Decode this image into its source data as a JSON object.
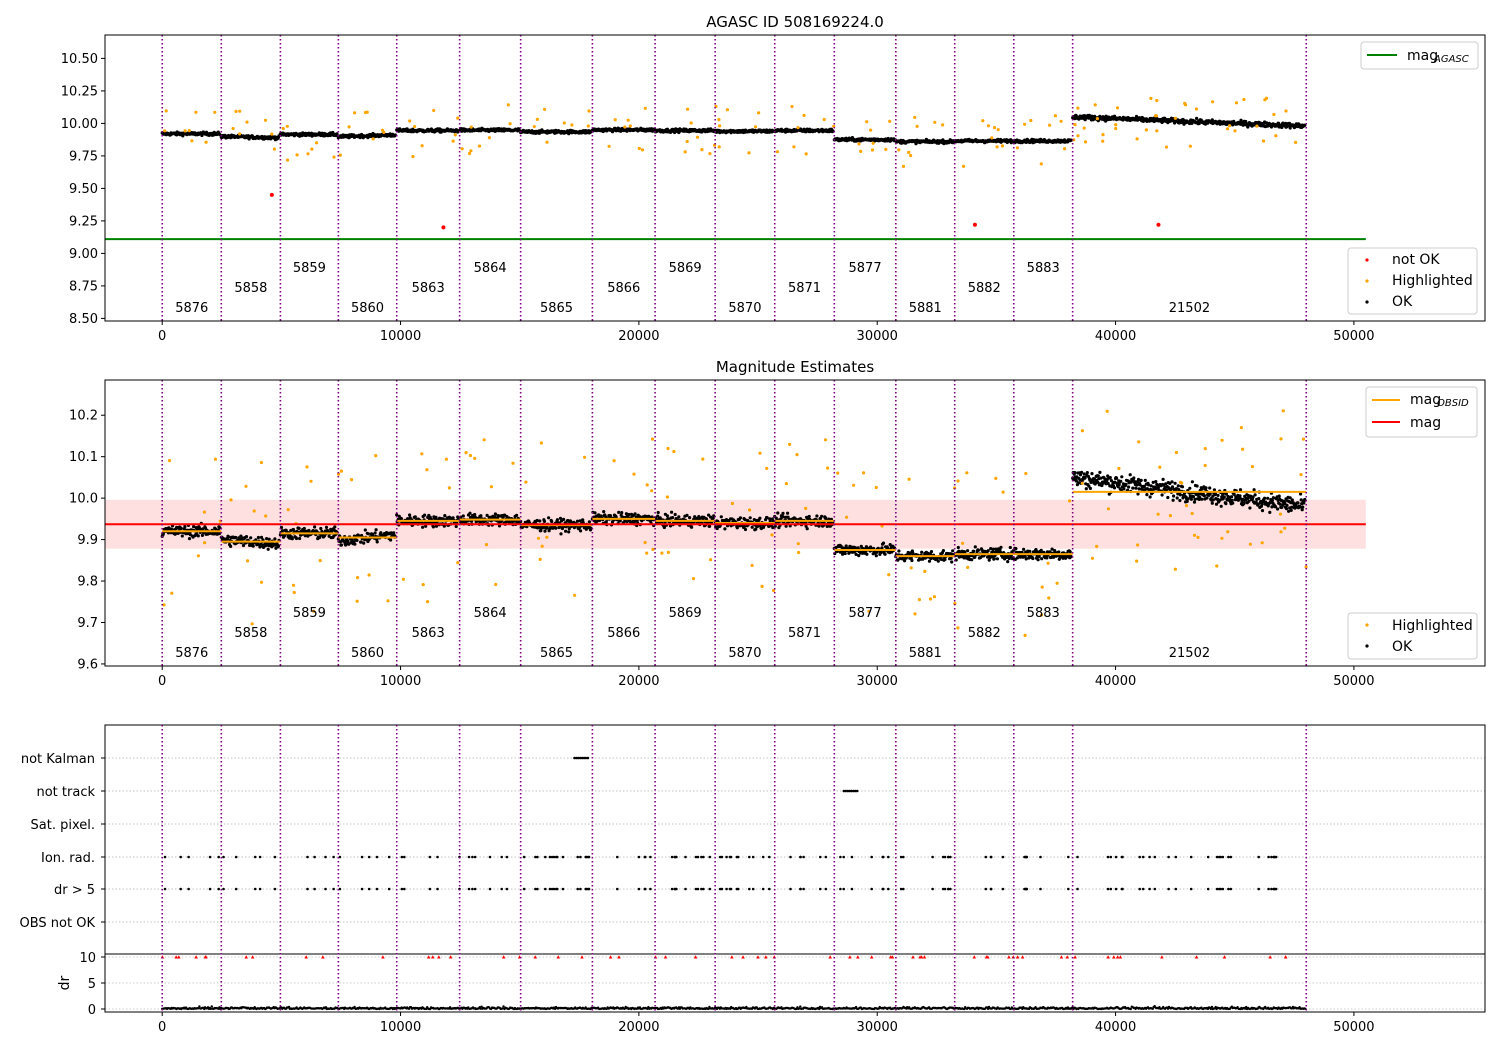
{
  "chart_data": {
    "type": "scatter",
    "obsids": [
      {
        "label": "5876",
        "start": 0,
        "end": 2480,
        "mag": 9.92,
        "row": 0
      },
      {
        "label": "5858",
        "start": 2480,
        "end": 4960,
        "mag": 9.895,
        "row": 1
      },
      {
        "label": "5859",
        "start": 4960,
        "end": 7390,
        "mag": 9.915,
        "row": 2
      },
      {
        "label": "5860",
        "start": 7390,
        "end": 9840,
        "mag": 9.905,
        "row": 0
      },
      {
        "label": "5863",
        "start": 9840,
        "end": 12480,
        "mag": 9.945,
        "row": 1
      },
      {
        "label": "5864",
        "start": 12480,
        "end": 15040,
        "mag": 9.948,
        "row": 2
      },
      {
        "label": "5865",
        "start": 15040,
        "end": 18050,
        "mag": 9.935,
        "row": 0
      },
      {
        "label": "5866",
        "start": 18050,
        "end": 20680,
        "mag": 9.95,
        "row": 1
      },
      {
        "label": "5869",
        "start": 20680,
        "end": 23200,
        "mag": 9.945,
        "row": 2
      },
      {
        "label": "5870",
        "start": 23200,
        "end": 25700,
        "mag": 9.94,
        "row": 0
      },
      {
        "label": "5871",
        "start": 25700,
        "end": 28200,
        "mag": 9.945,
        "row": 1
      },
      {
        "label": "5877",
        "start": 28200,
        "end": 30780,
        "mag": 9.875,
        "row": 2
      },
      {
        "label": "5881",
        "start": 30780,
        "end": 33250,
        "mag": 9.86,
        "row": 0
      },
      {
        "label": "5882",
        "start": 33250,
        "end": 35730,
        "mag": 9.865,
        "row": 1
      },
      {
        "label": "5883",
        "start": 35730,
        "end": 38200,
        "mag": 9.865,
        "row": 2
      },
      {
        "label": "21502",
        "start": 38200,
        "end": 48000,
        "mag": 10.015,
        "row": 0
      }
    ],
    "panel1": {
      "title": "AGASC ID 508169224.0",
      "xlim": [
        -2400,
        55500
      ],
      "ylim": [
        8.48,
        10.68
      ],
      "xticks": [
        0,
        10000,
        20000,
        30000,
        40000,
        50000
      ],
      "yticks": [
        8.5,
        8.75,
        9.0,
        9.25,
        9.5,
        9.75,
        10.0,
        10.25,
        10.5
      ],
      "ytick_labels": [
        "8.50",
        "8.75",
        "9.00",
        "9.25",
        "9.50",
        "9.75",
        "10.00",
        "10.25",
        "10.50"
      ],
      "mag_agasc": 9.11,
      "mag_agasc_legend": "mag",
      "mag_agasc_legend_sub": "AGASC",
      "legend_points": [
        "not OK",
        "Highlighted",
        "OK"
      ],
      "not_ok_points": [
        [
          4600,
          9.45
        ],
        [
          11800,
          9.2
        ],
        [
          34100,
          9.22
        ],
        [
          41800,
          9.22
        ]
      ]
    },
    "panel2": {
      "title": "Magnitude Estimates",
      "xlim": [
        -2400,
        55500
      ],
      "ylim": [
        9.595,
        10.285
      ],
      "xticks": [
        0,
        10000,
        20000,
        30000,
        40000,
        50000
      ],
      "yticks": [
        9.6,
        9.7,
        9.8,
        9.9,
        10.0,
        10.1,
        10.2
      ],
      "ytick_labels": [
        "9.6",
        "9.7",
        "9.8",
        "9.9",
        "10.0",
        "10.1",
        "10.2"
      ],
      "mag": 9.937,
      "mag_band": [
        9.878,
        9.996
      ],
      "legend_lines": [
        "mag",
        "mag"
      ],
      "legend_line_sub": "OBSID",
      "legend_points": [
        "Highlighted",
        "OK"
      ]
    },
    "panel3": {
      "flag_labels": [
        "not Kalman",
        "not track",
        "Sat. pixel.",
        "Ion. rad.",
        "dr > 5",
        "OBS not OK"
      ],
      "xlim": [
        -2400,
        55500
      ],
      "xticks": [
        0,
        10000,
        20000,
        30000,
        40000,
        50000
      ],
      "dr_ylabel": "dr",
      "dr_yticks": [
        0,
        5,
        10
      ]
    },
    "colors": {
      "ok": "#000000",
      "highlighted": "#ffa500",
      "not_ok": "#ff0000",
      "mag_agasc": "#008000",
      "mag": "#ff0000",
      "mag_obsid": "#ffa500",
      "band": "#ffe0e0",
      "obsid_line": "#800080"
    }
  }
}
